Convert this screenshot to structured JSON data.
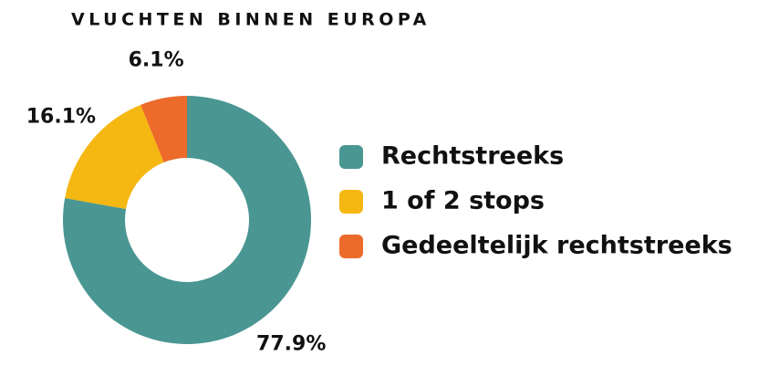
{
  "chart_data": {
    "type": "donut",
    "title": "VLUCHTEN BINNEN EUROPA",
    "categories": [
      "Rechtstreeks",
      "1 of 2 stops",
      "Gedeeltelijk rechtstreeks"
    ],
    "values": [
      77.9,
      16.1,
      6.1
    ],
    "value_labels": [
      "77.9%",
      "16.1%",
      "6.1%"
    ],
    "colors": [
      "#4a9692",
      "#f5b712",
      "#ec6a2a"
    ],
    "legend": "right"
  }
}
